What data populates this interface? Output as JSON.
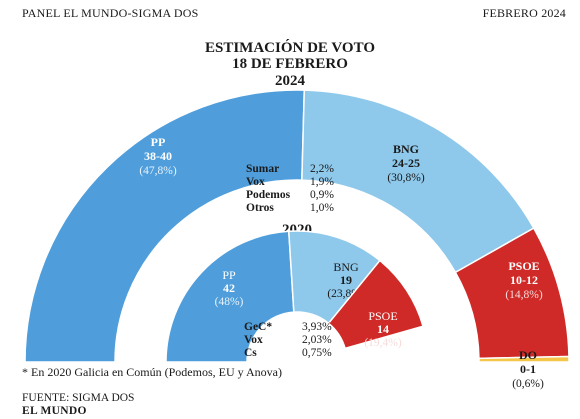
{
  "header": {
    "left": "PANEL EL MUNDO-SIGMA DOS",
    "right": "FEBRERO 2024"
  },
  "title": {
    "line1": "ESTIMACIÓN DE VOTO",
    "line2": "18 DE FEBRERO",
    "line3": "2024"
  },
  "footnote": "* En 2020 Galicia en Común (Podemos, EU y Anova)",
  "source": {
    "line1": "FUENTE: SIGMA DOS",
    "line2": "EL MUNDO"
  },
  "colors": {
    "pp": "#4f9edb",
    "bng": "#8ec8ea",
    "psoe": "#cf2a27",
    "do": "#f3c64a"
  },
  "chart_data": [
    {
      "type": "pie",
      "title": "2024",
      "series": [
        {
          "name": "PP",
          "seats": "38-40",
          "pct": "(47,8%)",
          "value": 47.8
        },
        {
          "name": "BNG",
          "seats": "24-25",
          "pct": "(30,8%)",
          "value": 30.8
        },
        {
          "name": "PSOE",
          "seats": "10-12",
          "pct": "(14,8%)",
          "value": 14.8
        },
        {
          "name": "DO",
          "seats": "0-1",
          "pct": "(0,6%)",
          "value": 0.6
        }
      ],
      "others": [
        {
          "name": "Sumar",
          "pct": "2,2%"
        },
        {
          "name": "Vox",
          "pct": "1,9%"
        },
        {
          "name": "Podemos",
          "pct": "0,9%"
        },
        {
          "name": "Otros",
          "pct": "1,0%"
        }
      ]
    },
    {
      "type": "pie",
      "title": "2020",
      "series": [
        {
          "name": "PP",
          "seats": "42",
          "pct": "(48%)",
          "value": 48
        },
        {
          "name": "BNG",
          "seats": "19",
          "pct": "(23,8%)",
          "value": 23.8
        },
        {
          "name": "PSOE",
          "seats": "14",
          "pct": "(19,4%)",
          "value": 19.4
        }
      ],
      "others": [
        {
          "name": "GeC*",
          "pct": "3,93%"
        },
        {
          "name": "Vox",
          "pct": "2,03%"
        },
        {
          "name": "Cs",
          "pct": "0,75%"
        }
      ]
    }
  ]
}
